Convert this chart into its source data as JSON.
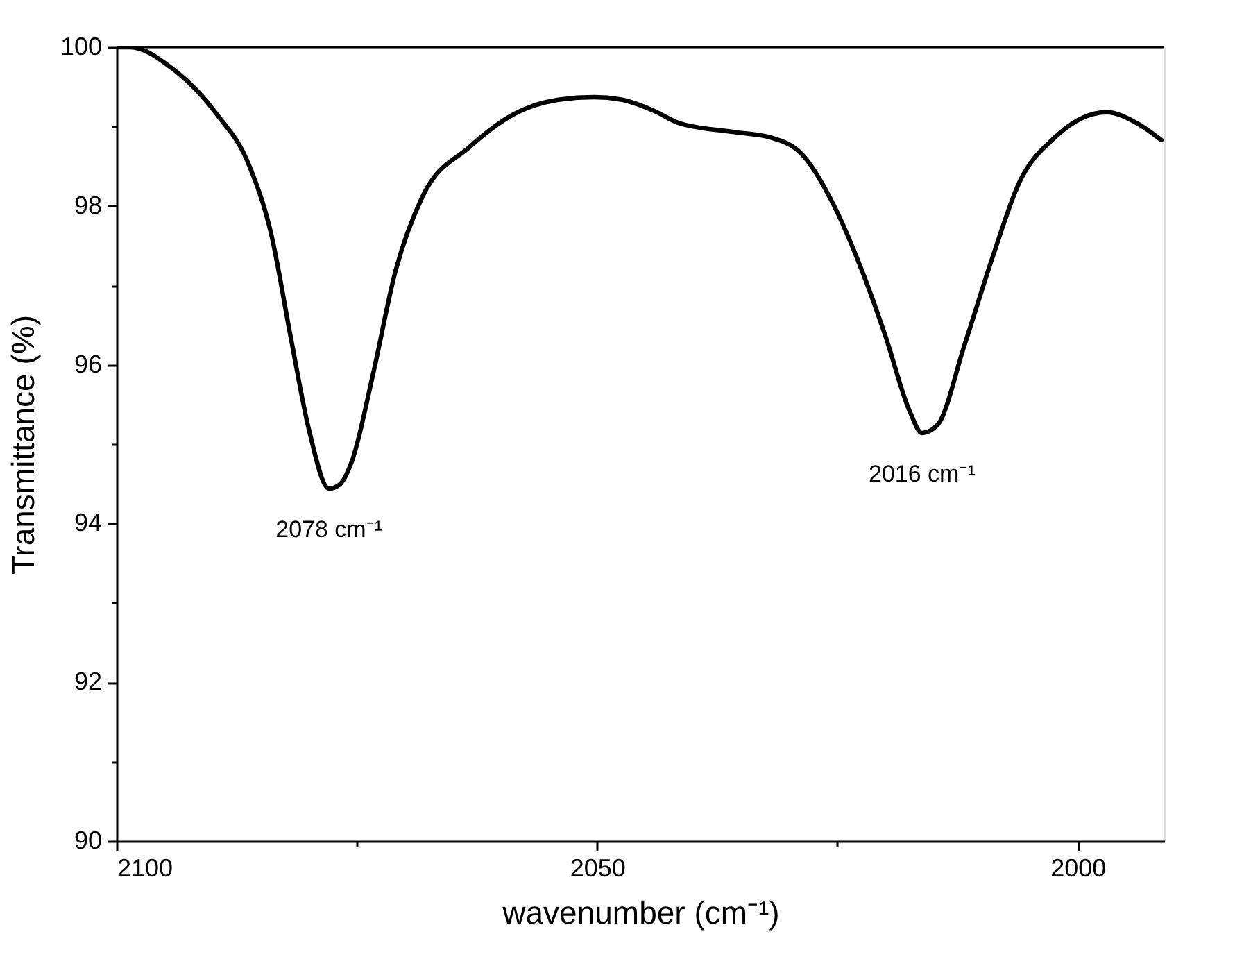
{
  "chart_data": {
    "type": "line",
    "xlabel": "wavenumber (cm⁻¹)",
    "ylabel": "Transmittance (%)",
    "x": [
      2100,
      2098.6,
      2094.3,
      2089.6,
      2086.2,
      2083.9,
      2081.9,
      2080.0,
      2077.9,
      2076.8,
      2075.5,
      2073.3,
      2071.0,
      2068.2,
      2063.3,
      2058.6,
      2053.9,
      2050.3,
      2047.5,
      2044.3,
      2041.4,
      2035.7,
      2031.9,
      2028.6,
      2025.3,
      2022.4,
      2020.0,
      2017.5,
      2016.2,
      2014.6,
      2011.8,
      2008.9,
      2006.1,
      2002.4,
      1997.0,
      1993.8,
      1991.3
    ],
    "series": [
      {
        "color": "#000000",
        "values": [
          100.0,
          100.0,
          99.74,
          99.16,
          98.51,
          97.64,
          96.36,
          95.19,
          94.44,
          94.49,
          94.79,
          95.89,
          97.17,
          98.11,
          98.74,
          99.16,
          99.34,
          99.37,
          99.34,
          99.21,
          99.04,
          98.93,
          98.86,
          98.64,
          97.99,
          97.17,
          96.36,
          95.42,
          95.14,
          95.24,
          96.24,
          97.34,
          98.29,
          98.86,
          99.18,
          99.04,
          98.83
        ]
      }
    ],
    "xlim": [
      2100,
      1991
    ],
    "ylim": [
      90,
      100
    ],
    "xticks": [
      2100,
      {
        "value": 2075,
        "label": null
      },
      2050,
      {
        "value": 2025,
        "label": null
      },
      2000
    ],
    "yticks": [
      90,
      {
        "value": 91,
        "label": null
      },
      92,
      {
        "value": 93,
        "label": null
      },
      94,
      {
        "value": 95,
        "label": null
      },
      96,
      {
        "value": 97,
        "label": null
      },
      98,
      {
        "value": 99,
        "label": null
      },
      100
    ],
    "annotations": [
      {
        "text": "2078 cm⁻¹",
        "x": 2077.9,
        "y": 94.44
      },
      {
        "text": "2016 cm⁻¹",
        "x": 2016.2,
        "y": 95.14
      }
    ],
    "grid": false,
    "marker": "none",
    "line_style": "solid"
  }
}
